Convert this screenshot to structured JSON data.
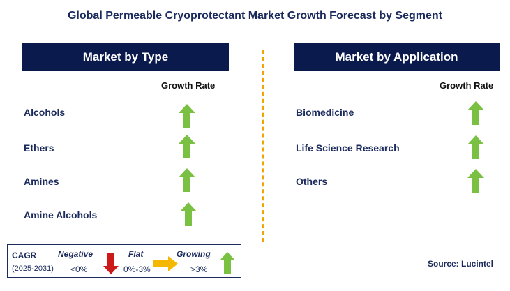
{
  "title": "Global Permeable Cryoprotectant Market Growth Forecast by Segment",
  "left_panel": {
    "header": "Market by Type",
    "growth_header": "Growth Rate",
    "rows": [
      {
        "label": "Alcohols",
        "trend": "growing"
      },
      {
        "label": "Ethers",
        "trend": "growing"
      },
      {
        "label": "Amines",
        "trend": "growing"
      },
      {
        "label": "Amine Alcohols",
        "trend": "growing"
      }
    ]
  },
  "right_panel": {
    "header": "Market by Application",
    "growth_header": "Growth Rate",
    "rows": [
      {
        "label": "Biomedicine",
        "trend": "growing"
      },
      {
        "label": "Life Science Research",
        "trend": "growing"
      },
      {
        "label": "Others",
        "trend": "growing"
      }
    ]
  },
  "legend": {
    "cagr_label": "CAGR",
    "period": "(2025-2031)",
    "negative_label": "Negative",
    "negative_range": "<0%",
    "flat_label": "Flat",
    "flat_range": "0%-3%",
    "growing_label": "Growing",
    "growing_range": ">3%"
  },
  "source": "Source: Lucintel",
  "colors": {
    "header_bg": "#0b1a4d",
    "growing": "#7ac143",
    "negative": "#cc1a1a",
    "flat": "#f5b800",
    "divider": "#f0a500"
  }
}
